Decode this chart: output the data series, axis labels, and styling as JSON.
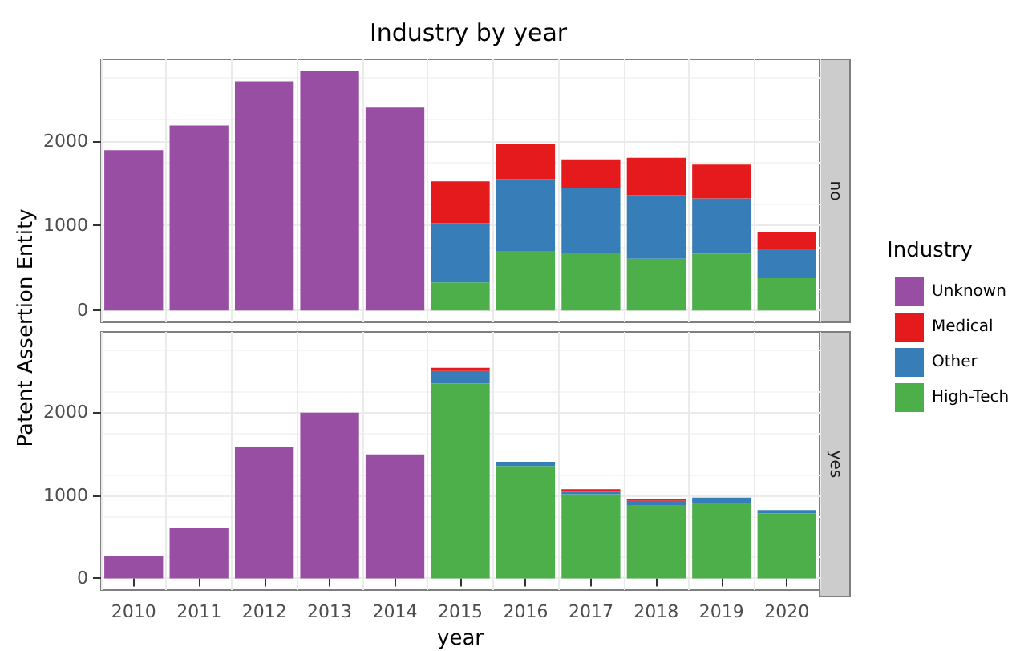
{
  "chart_data": [
    {
      "type": "bar",
      "title": "Industry by year",
      "legend_title": "Industry",
      "stacked": true,
      "categories": [
        "2010",
        "2011",
        "2012",
        "2013",
        "2014",
        "2015",
        "2016",
        "2017",
        "2018",
        "2019",
        "2020"
      ],
      "series": [
        {
          "name": "High-Tech",
          "color": "#4daf4a",
          "values": [
            null,
            null,
            null,
            null,
            null,
            330,
            700,
            680,
            610,
            670,
            380
          ]
        },
        {
          "name": "Other",
          "color": "#377eb8",
          "values": [
            null,
            null,
            null,
            null,
            null,
            700,
            850,
            760,
            750,
            650,
            350
          ]
        },
        {
          "name": "Medical",
          "color": "#e41a1c",
          "values": [
            null,
            null,
            null,
            null,
            null,
            490,
            410,
            340,
            440,
            400,
            190
          ]
        },
        {
          "name": "Unknown",
          "color": "#984ea3",
          "values": [
            1890,
            2180,
            2700,
            2820,
            2390,
            null,
            null,
            null,
            null,
            null,
            null
          ]
        }
      ],
      "ylim": [
        -140,
        2960
      ],
      "yticks": [
        0,
        1000,
        2000
      ],
      "grid": true,
      "legend": "right",
      "tick_labels": "y",
      "annotations": [
        "no"
      ]
    },
    {
      "type": "bar",
      "xlabel": "year",
      "ylabel": "Patent Assertion Entity",
      "stacked": true,
      "categories": [
        "2010",
        "2011",
        "2012",
        "2013",
        "2014",
        "2015",
        "2016",
        "2017",
        "2018",
        "2019",
        "2020"
      ],
      "series": [
        {
          "name": "High-Tech",
          "color": "#4daf4a",
          "values": [
            null,
            null,
            null,
            null,
            null,
            2340,
            1350,
            1010,
            880,
            900,
            780
          ]
        },
        {
          "name": "Other",
          "color": "#377eb8",
          "values": [
            null,
            null,
            null,
            null,
            null,
            150,
            50,
            30,
            50,
            70,
            40
          ]
        },
        {
          "name": "Medical",
          "color": "#e41a1c",
          "values": [
            null,
            null,
            null,
            null,
            null,
            40,
            null,
            30,
            20,
            null,
            null
          ]
        },
        {
          "name": "Unknown",
          "color": "#984ea3",
          "values": [
            270,
            610,
            1580,
            1990,
            1490,
            null,
            null,
            null,
            null,
            null,
            null
          ]
        }
      ],
      "ylim": [
        -140,
        2960
      ],
      "yticks": [
        0,
        1000,
        2000
      ],
      "grid": true,
      "legend": "right",
      "annotations": [
        "yes"
      ]
    }
  ]
}
